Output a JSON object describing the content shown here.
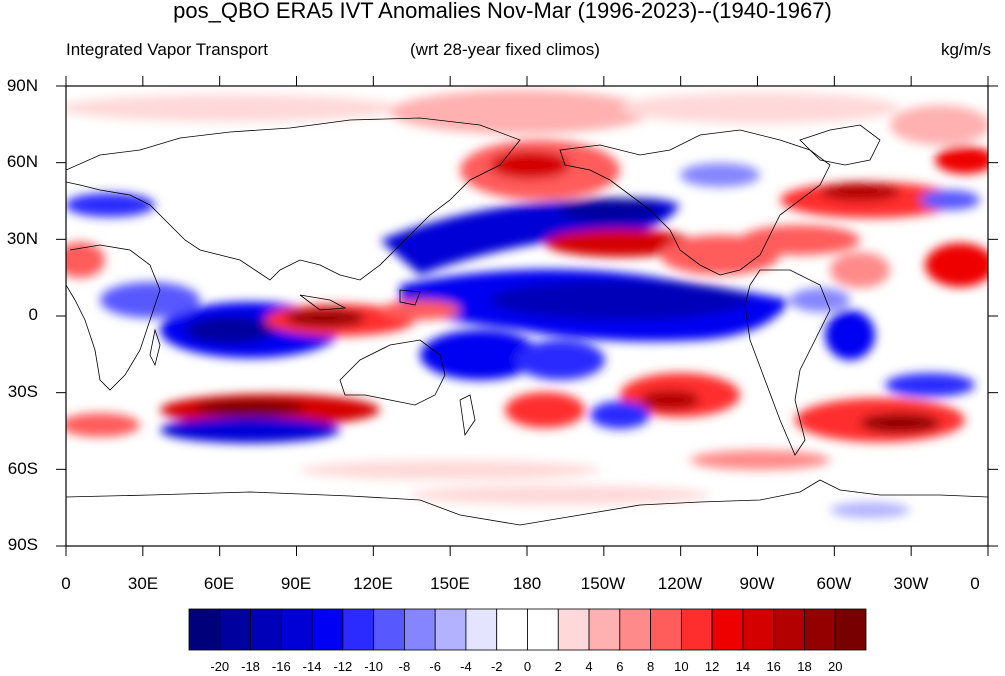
{
  "title": "pos_QBO ERA5 IVT Anomalies Nov-Mar (1996-2023)--(1940-1967)",
  "subtitle_left": "Integrated Vapor Transport",
  "subtitle_center": "(wrt 28-year fixed climos)",
  "subtitle_right": "kg/m/s",
  "lat_labels": [
    "90N",
    "60N",
    "30N",
    "0",
    "30S",
    "60S",
    "90S"
  ],
  "lon_labels": [
    "0",
    "30E",
    "60E",
    "90E",
    "120E",
    "150E",
    "180",
    "150W",
    "120W",
    "90W",
    "60W",
    "30W",
    "0"
  ],
  "colorbar": {
    "labels": [
      "-20",
      "-18",
      "-16",
      "-14",
      "-12",
      "-10",
      "-8",
      "-6",
      "-4",
      "-2",
      "0",
      "2",
      "4",
      "6",
      "8",
      "10",
      "12",
      "14",
      "16",
      "18",
      "20"
    ],
    "colors": [
      "#00007a",
      "#00009e",
      "#0000b8",
      "#0000d6",
      "#0000f2",
      "#2b2bff",
      "#5858ff",
      "#8585ff",
      "#b2b2ff",
      "#e4e4ff",
      "#ffffff",
      "#ffffff",
      "#ffd9d9",
      "#ffb0b0",
      "#ff8a8a",
      "#ff5c5c",
      "#ff2e2e",
      "#ef0000",
      "#d40000",
      "#b30000",
      "#940000",
      "#780000"
    ]
  },
  "map": {
    "projection": "cylindrical equidistant",
    "lon_range": [
      0,
      360
    ],
    "lat_range": [
      -90,
      90
    ]
  }
}
